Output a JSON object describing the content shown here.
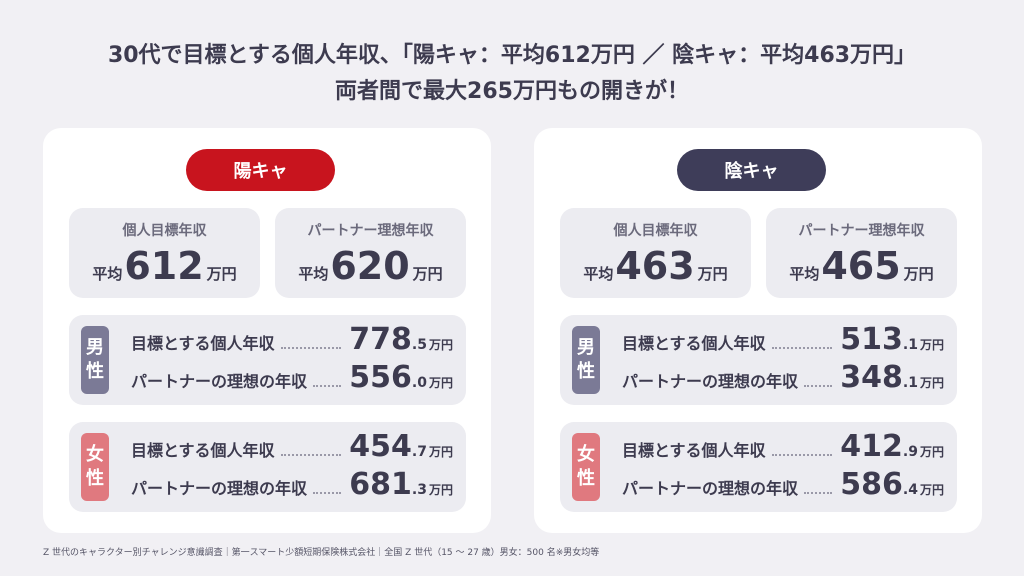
{
  "headline": {
    "line1": "30代で目標とする個人年収、「陽キャ：平均612万円 ／ 陰キャ：平均463万円」",
    "line2": "両者間で最大265万円もの開きが！"
  },
  "panels": [
    {
      "title": "陽キャ",
      "accent": "#c8141e",
      "stats": [
        {
          "label": "個人目標年収",
          "prefix": "平均",
          "value": "612",
          "unit": "万円"
        },
        {
          "label": "パートナー理想年収",
          "prefix": "平均",
          "value": "620",
          "unit": "万円"
        }
      ],
      "groups": [
        {
          "gender_top": "男",
          "gender_bottom": "性",
          "rows": [
            {
              "label": "目標とする個人年収",
              "int": "778",
              "dec": ".5",
              "unit": "万円"
            },
            {
              "label": "パートナーの理想の年収",
              "int": "556",
              "dec": ".0",
              "unit": "万円"
            }
          ]
        },
        {
          "gender_top": "女",
          "gender_bottom": "性",
          "rows": [
            {
              "label": "目標とする個人年収",
              "int": "454",
              "dec": ".7",
              "unit": "万円"
            },
            {
              "label": "パートナーの理想の年収",
              "int": "681",
              "dec": ".3",
              "unit": "万円"
            }
          ]
        }
      ]
    },
    {
      "title": "陰キャ",
      "accent": "#3e3d59",
      "stats": [
        {
          "label": "個人目標年収",
          "prefix": "平均",
          "value": "463",
          "unit": "万円"
        },
        {
          "label": "パートナー理想年収",
          "prefix": "平均",
          "value": "465",
          "unit": "万円"
        }
      ],
      "groups": [
        {
          "gender_top": "男",
          "gender_bottom": "性",
          "rows": [
            {
              "label": "目標とする個人年収",
              "int": "513",
              "dec": ".1",
              "unit": "万円"
            },
            {
              "label": "パートナーの理想の年収",
              "int": "348",
              "dec": ".1",
              "unit": "万円"
            }
          ]
        },
        {
          "gender_top": "女",
          "gender_bottom": "性",
          "rows": [
            {
              "label": "目標とする個人年収",
              "int": "412",
              "dec": ".9",
              "unit": "万円"
            },
            {
              "label": "パートナーの理想の年収",
              "int": "586",
              "dec": ".4",
              "unit": "万円"
            }
          ]
        }
      ]
    }
  ],
  "footnote": "Z 世代のキャラクター別チャレンジ意識調査｜第一スマート少額短期保険株式会社｜全国 Z 世代（15 ～ 27 歳）男女：500 名※男女均等"
}
